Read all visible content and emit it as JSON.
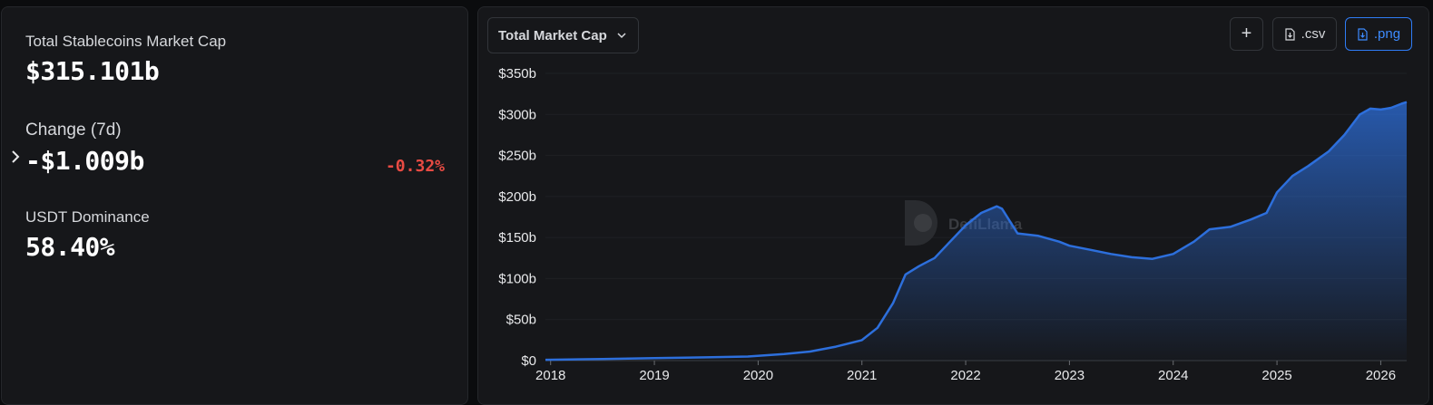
{
  "stats": {
    "market_cap_label": "Total Stablecoins Market Cap",
    "market_cap_value": "$315.101b",
    "change_label": "Change (7d)",
    "change_value": "-$1.009b",
    "change_pct": "-0.32%",
    "dominance_label": "USDT Dominance",
    "dominance_value": "58.40%"
  },
  "toolbar": {
    "dropdown_label": "Total Market Cap",
    "plus_label": "+",
    "csv_label": ".csv",
    "png_label": ".png"
  },
  "watermark": {
    "text": "DefiLlama"
  },
  "colors": {
    "line": "#2d6fdc",
    "negative": "#e84b43",
    "accent": "#2f7cf6"
  },
  "chart_data": {
    "type": "area",
    "title": "",
    "xlabel": "",
    "ylabel": "",
    "ylim": [
      0,
      350
    ],
    "y_ticks": [
      "$0",
      "$50b",
      "$100b",
      "$150b",
      "$200b",
      "$250b",
      "$300b",
      "$350b"
    ],
    "x_ticks": [
      "2018",
      "2019",
      "2020",
      "2021",
      "2022",
      "2023",
      "2024",
      "2025",
      "2026"
    ],
    "x_range": [
      2017.95,
      2026.25
    ],
    "series": [
      {
        "values": [
          [
            2017.95,
            1
          ],
          [
            2018.5,
            2
          ],
          [
            2019.0,
            3
          ],
          [
            2019.5,
            4
          ],
          [
            2019.9,
            5
          ],
          [
            2020.25,
            8
          ],
          [
            2020.5,
            11
          ],
          [
            2020.75,
            17
          ],
          [
            2021.0,
            25
          ],
          [
            2021.15,
            40
          ],
          [
            2021.3,
            70
          ],
          [
            2021.42,
            105
          ],
          [
            2021.55,
            115
          ],
          [
            2021.7,
            125
          ],
          [
            2021.85,
            145
          ],
          [
            2022.0,
            165
          ],
          [
            2022.15,
            180
          ],
          [
            2022.3,
            188
          ],
          [
            2022.35,
            185
          ],
          [
            2022.5,
            155
          ],
          [
            2022.7,
            152
          ],
          [
            2022.9,
            145
          ],
          [
            2023.0,
            140
          ],
          [
            2023.2,
            135
          ],
          [
            2023.4,
            130
          ],
          [
            2023.6,
            126
          ],
          [
            2023.8,
            124
          ],
          [
            2024.0,
            130
          ],
          [
            2024.2,
            145
          ],
          [
            2024.35,
            160
          ],
          [
            2024.55,
            163
          ],
          [
            2024.75,
            172
          ],
          [
            2024.9,
            180
          ],
          [
            2025.0,
            205
          ],
          [
            2025.15,
            225
          ],
          [
            2025.3,
            237
          ],
          [
            2025.5,
            255
          ],
          [
            2025.65,
            275
          ],
          [
            2025.8,
            300
          ],
          [
            2025.9,
            307
          ],
          [
            2026.0,
            306
          ],
          [
            2026.1,
            308
          ],
          [
            2026.2,
            313
          ],
          [
            2026.25,
            315
          ]
        ]
      }
    ],
    "grid": true
  }
}
